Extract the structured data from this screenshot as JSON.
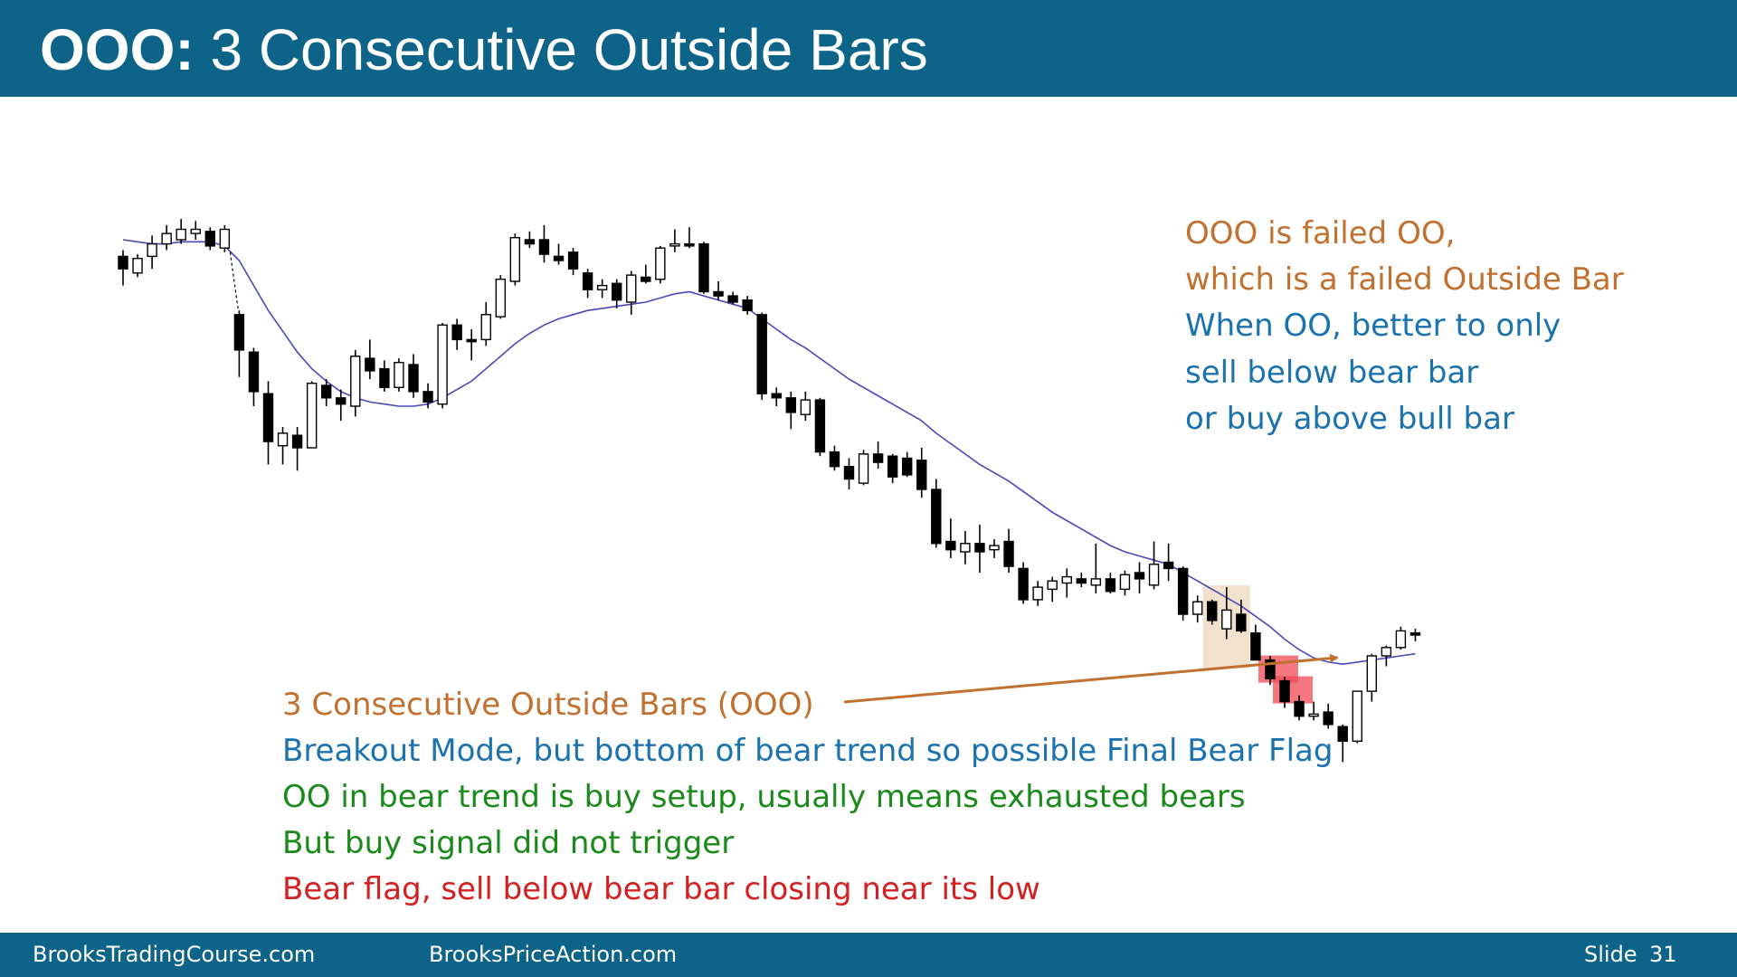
{
  "title": {
    "bold": "OOO:",
    "rest": " 3 Consecutive Outside Bars"
  },
  "notes_right": [
    {
      "text": "OOO is failed OO,",
      "color": "#c0702f"
    },
    {
      "text": "which is a failed Outside Bar",
      "color": "#c0702f"
    },
    {
      "text": "When OO, better to only",
      "color": "#1a72ae"
    },
    {
      "text": "sell below bear bar",
      "color": "#1a72ae"
    },
    {
      "text": "or buy above bull bar",
      "color": "#1a72ae"
    }
  ],
  "notes_bottom": [
    {
      "text": "3 Consecutive Outside Bars (OOO)",
      "color": "#c0702f"
    },
    {
      "text": "Breakout Mode, but bottom of bear trend so possible Final Bear Flag",
      "color": "#1a72ae"
    },
    {
      "text": "OO in bear trend is buy setup, usually means exhausted bears",
      "color": "#1a8a1a"
    },
    {
      "text": "But buy signal did not trigger",
      "color": "#1a8a1a"
    },
    {
      "text": "Bear flag, sell below bear bar closing near its low",
      "color": "#d42020"
    }
  ],
  "footer": {
    "left": "BrooksTradingCourse.com",
    "center": "BrooksPriceAction.com",
    "slide_label": "Slide",
    "slide_number": "31"
  },
  "colors": {
    "header_bg": "#0d6488",
    "ema": "#4a48b8",
    "highlight": "#f0dcc4",
    "signal_box": "#f04a55",
    "arrow": "#c0702f"
  },
  "chart_data": {
    "type": "candlestick",
    "price_unit": "relative price level (chart has no price axis; 0 = bottom of range, 100 = top)",
    "bars": [
      {
        "o": 91.0,
        "h": 92.5,
        "l": 84.0,
        "c": 88.0
      },
      {
        "o": 87.0,
        "h": 91.5,
        "l": 86.0,
        "c": 90.5
      },
      {
        "o": 91.0,
        "h": 96.0,
        "l": 88.0,
        "c": 94.0
      },
      {
        "o": 94.0,
        "h": 98.5,
        "l": 92.5,
        "c": 96.5
      },
      {
        "o": 95.0,
        "h": 100.0,
        "l": 94.0,
        "c": 97.5
      },
      {
        "o": 96.5,
        "h": 99.5,
        "l": 95.0,
        "c": 97.5
      },
      {
        "o": 97.0,
        "h": 98.0,
        "l": 92.5,
        "c": 93.5
      },
      {
        "o": 93.0,
        "h": 98.5,
        "l": 92.0,
        "c": 97.5
      },
      {
        "o": 77.0,
        "h": 78.0,
        "l": 62.0,
        "c": 68.5
      },
      {
        "o": 68.0,
        "h": 69.0,
        "l": 55.0,
        "c": 58.5
      },
      {
        "o": 58.0,
        "h": 61.0,
        "l": 41.0,
        "c": 46.5
      },
      {
        "o": 45.5,
        "h": 50.0,
        "l": 41.0,
        "c": 48.5
      },
      {
        "o": 48.0,
        "h": 50.0,
        "l": 39.5,
        "c": 45.0
      },
      {
        "o": 45.0,
        "h": 61.0,
        "l": 45.0,
        "c": 60.5
      },
      {
        "o": 60.0,
        "h": 61.5,
        "l": 55.0,
        "c": 57.0
      },
      {
        "o": 57.0,
        "h": 59.0,
        "l": 51.5,
        "c": 55.5
      },
      {
        "o": 55.0,
        "h": 68.5,
        "l": 52.5,
        "c": 67.0
      },
      {
        "o": 66.5,
        "h": 71.0,
        "l": 61.5,
        "c": 63.5
      },
      {
        "o": 64.0,
        "h": 66.0,
        "l": 58.5,
        "c": 59.5
      },
      {
        "o": 59.5,
        "h": 66.5,
        "l": 58.5,
        "c": 65.5
      },
      {
        "o": 65.0,
        "h": 67.5,
        "l": 57.0,
        "c": 58.5
      },
      {
        "o": 58.5,
        "h": 60.5,
        "l": 54.5,
        "c": 56.0
      },
      {
        "o": 55.5,
        "h": 75.0,
        "l": 54.5,
        "c": 74.5
      },
      {
        "o": 74.5,
        "h": 76.0,
        "l": 68.5,
        "c": 71.0
      },
      {
        "o": 71.0,
        "h": 73.5,
        "l": 66.0,
        "c": 70.5
      },
      {
        "o": 71.0,
        "h": 80.0,
        "l": 69.5,
        "c": 77.0
      },
      {
        "o": 76.5,
        "h": 86.5,
        "l": 76.0,
        "c": 85.5
      },
      {
        "o": 85.0,
        "h": 96.5,
        "l": 84.0,
        "c": 95.5
      },
      {
        "o": 95.0,
        "h": 97.0,
        "l": 93.0,
        "c": 94.0
      },
      {
        "o": 95.0,
        "h": 98.5,
        "l": 89.5,
        "c": 91.5
      },
      {
        "o": 91.0,
        "h": 94.0,
        "l": 89.0,
        "c": 90.0
      },
      {
        "o": 92.0,
        "h": 93.0,
        "l": 86.5,
        "c": 88.0
      },
      {
        "o": 87.0,
        "h": 88.0,
        "l": 81.0,
        "c": 83.0
      },
      {
        "o": 83.0,
        "h": 85.5,
        "l": 81.0,
        "c": 84.0
      },
      {
        "o": 84.5,
        "h": 85.5,
        "l": 78.5,
        "c": 80.5
      },
      {
        "o": 80.0,
        "h": 87.5,
        "l": 77.0,
        "c": 86.5
      },
      {
        "o": 86.0,
        "h": 89.0,
        "l": 84.5,
        "c": 85.0
      },
      {
        "o": 85.5,
        "h": 93.5,
        "l": 84.5,
        "c": 93.0
      },
      {
        "o": 93.5,
        "h": 97.5,
        "l": 92.0,
        "c": 94.0
      },
      {
        "o": 94.0,
        "h": 98.0,
        "l": 93.0,
        "c": 93.5
      },
      {
        "o": 94.0,
        "h": 94.5,
        "l": 82.0,
        "c": 82.5
      },
      {
        "o": 82.5,
        "h": 85.0,
        "l": 80.5,
        "c": 81.5
      },
      {
        "o": 81.5,
        "h": 82.5,
        "l": 79.5,
        "c": 80.0
      },
      {
        "o": 80.5,
        "h": 81.5,
        "l": 77.0,
        "c": 78.0
      },
      {
        "o": 77.0,
        "h": 77.5,
        "l": 56.5,
        "c": 58.0
      },
      {
        "o": 58.0,
        "h": 59.5,
        "l": 55.0,
        "c": 57.0
      },
      {
        "o": 57.0,
        "h": 58.5,
        "l": 49.5,
        "c": 53.5
      },
      {
        "o": 53.0,
        "h": 58.5,
        "l": 51.5,
        "c": 56.5
      },
      {
        "o": 56.5,
        "h": 57.0,
        "l": 43.0,
        "c": 44.0
      },
      {
        "o": 44.0,
        "h": 45.5,
        "l": 39.5,
        "c": 40.5
      },
      {
        "o": 40.5,
        "h": 42.5,
        "l": 35.0,
        "c": 37.5
      },
      {
        "o": 36.5,
        "h": 44.5,
        "l": 36.0,
        "c": 43.5
      },
      {
        "o": 43.5,
        "h": 46.5,
        "l": 40.0,
        "c": 41.5
      },
      {
        "o": 43.0,
        "h": 43.5,
        "l": 36.5,
        "c": 38.0
      },
      {
        "o": 42.5,
        "h": 44.0,
        "l": 38.0,
        "c": 38.5
      },
      {
        "o": 42.0,
        "h": 45.0,
        "l": 33.0,
        "c": 35.0
      },
      {
        "o": 35.0,
        "h": 37.5,
        "l": 21.0,
        "c": 22.0
      },
      {
        "o": 22.5,
        "h": 28.0,
        "l": 18.5,
        "c": 20.5
      },
      {
        "o": 20.0,
        "h": 25.0,
        "l": 17.0,
        "c": 22.0
      },
      {
        "o": 22.0,
        "h": 26.5,
        "l": 15.0,
        "c": 20.0
      },
      {
        "o": 20.5,
        "h": 23.0,
        "l": 18.5,
        "c": 21.5
      },
      {
        "o": 22.5,
        "h": 25.5,
        "l": 15.0,
        "c": 16.5
      },
      {
        "o": 16.0,
        "h": 17.5,
        "l": 7.5,
        "c": 8.5
      },
      {
        "o": 8.5,
        "h": 13.0,
        "l": 7.0,
        "c": 11.5
      },
      {
        "o": 11.0,
        "h": 14.0,
        "l": 8.0,
        "c": 13.0
      },
      {
        "o": 12.5,
        "h": 16.0,
        "l": 9.0,
        "c": 14.0
      },
      {
        "o": 13.5,
        "h": 15.0,
        "l": 11.5,
        "c": 12.5
      },
      {
        "o": 12.0,
        "h": 22.0,
        "l": 10.0,
        "c": 13.5
      },
      {
        "o": 13.5,
        "h": 15.0,
        "l": 10.0,
        "c": 10.5
      },
      {
        "o": 11.0,
        "h": 15.5,
        "l": 9.5,
        "c": 14.5
      },
      {
        "o": 15.0,
        "h": 17.5,
        "l": 10.0,
        "c": 13.5
      },
      {
        "o": 12.0,
        "h": 22.5,
        "l": 11.0,
        "c": 17.0
      },
      {
        "o": 17.5,
        "h": 22.0,
        "l": 13.0,
        "c": 16.0
      },
      {
        "o": 16.0,
        "h": 16.5,
        "l": 3.5,
        "c": 5.0
      },
      {
        "o": 5.0,
        "h": 9.5,
        "l": 3.0,
        "c": 8.0
      },
      {
        "o": 8.0,
        "h": 8.5,
        "l": 2.5,
        "c": 3.5
      },
      {
        "o": 1.5,
        "h": 11.5,
        "l": -1.0,
        "c": 6.0
      },
      {
        "o": 5.0,
        "h": 8.5,
        "l": 0.5,
        "c": 1.0
      },
      {
        "o": 0.5,
        "h": 2.5,
        "l": -5.5,
        "c": -6.0
      },
      {
        "o": -6.0,
        "h": -5.0,
        "l": -12.0,
        "c": -10.5
      },
      {
        "o": -11.0,
        "h": -10.0,
        "l": -17.5,
        "c": -16.0
      },
      {
        "o": -16.0,
        "h": -14.5,
        "l": -20.5,
        "c": -19.5
      },
      {
        "o": -19.5,
        "h": -16.0,
        "l": -20.5,
        "c": -19.0
      },
      {
        "o": -18.5,
        "h": -16.5,
        "l": -22.5,
        "c": -21.5
      },
      {
        "o": -22.0,
        "h": -21.5,
        "l": -30.5,
        "c": -25.5
      },
      {
        "o": -25.5,
        "h": -13.5,
        "l": -26.0,
        "c": -13.5
      },
      {
        "o": -13.5,
        "h": -4.5,
        "l": -16.0,
        "c": -5.0
      },
      {
        "o": -5.0,
        "h": -2.5,
        "l": -7.5,
        "c": -3.0
      },
      {
        "o": -3.0,
        "h": 2.0,
        "l": -3.5,
        "c": 1.0
      },
      {
        "o": 0.5,
        "h": 1.5,
        "l": -1.5,
        "c": 0.0
      }
    ],
    "ema": [
      95.0,
      94.5,
      94.0,
      94.0,
      94.5,
      94.5,
      94.5,
      93.5,
      90.0,
      84.0,
      78.0,
      73.0,
      68.0,
      64.0,
      61.0,
      58.5,
      57.0,
      56.0,
      55.5,
      55.0,
      55.0,
      55.5,
      57.0,
      59.0,
      61.0,
      64.0,
      67.0,
      70.0,
      72.5,
      74.5,
      76.0,
      77.0,
      78.0,
      78.5,
      79.0,
      79.5,
      80.0,
      81.0,
      82.0,
      82.5,
      81.5,
      80.5,
      79.5,
      78.5,
      76.0,
      73.5,
      71.0,
      69.0,
      66.5,
      64.0,
      61.5,
      59.5,
      57.5,
      55.5,
      53.5,
      51.5,
      48.5,
      46.0,
      43.5,
      41.0,
      39.0,
      37.0,
      34.5,
      32.0,
      29.5,
      27.5,
      25.5,
      23.5,
      21.5,
      20.0,
      19.0,
      18.0,
      17.0,
      15.0,
      13.0,
      11.0,
      9.0,
      7.0,
      4.5,
      2.0,
      -1.0,
      -3.5,
      -5.5,
      -6.5,
      -7.0,
      -6.5,
      -6.0,
      -5.5,
      -5.0,
      -4.5
    ],
    "ooo_bars": [
      75,
      76,
      77
    ],
    "signal_bars": [
      79,
      80
    ]
  }
}
